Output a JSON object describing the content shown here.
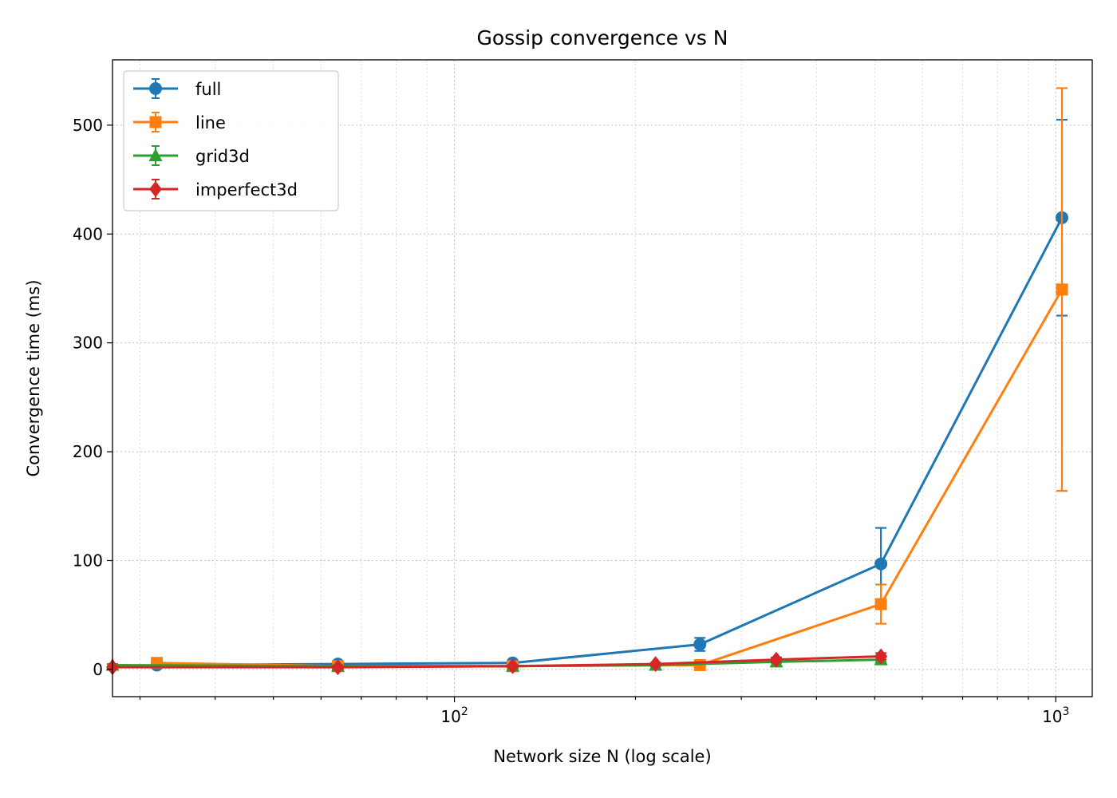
{
  "chart_data": {
    "type": "line",
    "title": "Gossip convergence vs N",
    "xlabel": "Network size N (log scale)",
    "ylabel": "Convergence time (ms)",
    "xscale": "log",
    "xlim": [
      27,
      1150
    ],
    "ylim": [
      -25,
      560
    ],
    "x_ticks": [
      {
        "value": 100,
        "label": "10",
        "exp": "2"
      },
      {
        "value": 1000,
        "label": "10",
        "exp": "3"
      }
    ],
    "y_ticks": [
      0,
      100,
      200,
      300,
      400,
      500
    ],
    "grid": true,
    "legend_position": "top-left",
    "series": [
      {
        "name": "full",
        "color": "#1f77b4",
        "marker": "circle",
        "x": [
          32,
          64,
          125,
          256,
          512,
          1024
        ],
        "y": [
          4,
          5,
          6,
          23,
          97,
          415
        ],
        "err": [
          1,
          1,
          1,
          6,
          33,
          90
        ]
      },
      {
        "name": "line",
        "color": "#ff7f0e",
        "marker": "square",
        "x": [
          32,
          64,
          125,
          256,
          512,
          1024
        ],
        "y": [
          6,
          3,
          3,
          4,
          60,
          349
        ],
        "err": [
          1,
          1,
          1,
          1,
          18,
          185
        ]
      },
      {
        "name": "grid3d",
        "color": "#2ca02c",
        "marker": "triangle",
        "x": [
          27,
          64,
          125,
          216,
          343,
          512
        ],
        "y": [
          4,
          3,
          3,
          4,
          7,
          9
        ],
        "err": [
          1,
          1,
          1,
          1,
          1,
          2
        ]
      },
      {
        "name": "imperfect3d",
        "color": "#d62728",
        "marker": "diamond",
        "x": [
          27,
          64,
          125,
          216,
          343,
          512
        ],
        "y": [
          2,
          2,
          3,
          5,
          9,
          12
        ],
        "err": [
          1,
          1,
          1,
          1,
          2,
          3
        ]
      }
    ]
  }
}
